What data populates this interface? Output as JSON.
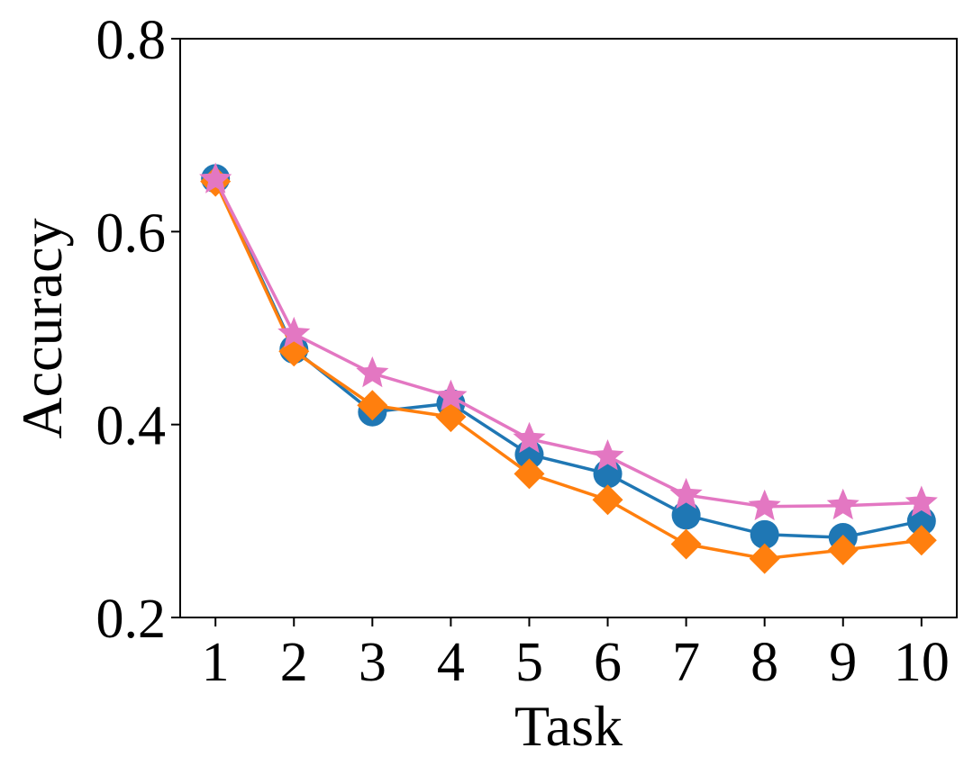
{
  "chart_data": {
    "type": "line",
    "title": "",
    "xlabel": "Task",
    "ylabel": "Accuracy",
    "x": [
      1,
      2,
      3,
      4,
      5,
      6,
      7,
      8,
      9,
      10
    ],
    "xlim": [
      0.55,
      10.45
    ],
    "ylim": [
      0.2,
      0.8
    ],
    "yticks": [
      "0.2",
      "0.4",
      "0.6",
      "0.8"
    ],
    "xticks": [
      "1",
      "2",
      "3",
      "4",
      "5",
      "6",
      "7",
      "8",
      "9",
      "10"
    ],
    "grid": false,
    "legend": "none",
    "series": [
      {
        "marker": "circle",
        "color": "#1f77b4",
        "values": [
          0.655,
          0.478,
          0.413,
          0.422,
          0.369,
          0.349,
          0.306,
          0.286,
          0.283,
          0.3
        ]
      },
      {
        "marker": "diamond",
        "color": "#ff7f0e",
        "values": [
          0.652,
          0.476,
          0.42,
          0.408,
          0.349,
          0.322,
          0.276,
          0.261,
          0.27,
          0.28
        ]
      },
      {
        "marker": "star",
        "color": "#e377c2",
        "values": [
          0.654,
          0.494,
          0.453,
          0.429,
          0.385,
          0.367,
          0.327,
          0.315,
          0.316,
          0.319
        ]
      }
    ]
  }
}
